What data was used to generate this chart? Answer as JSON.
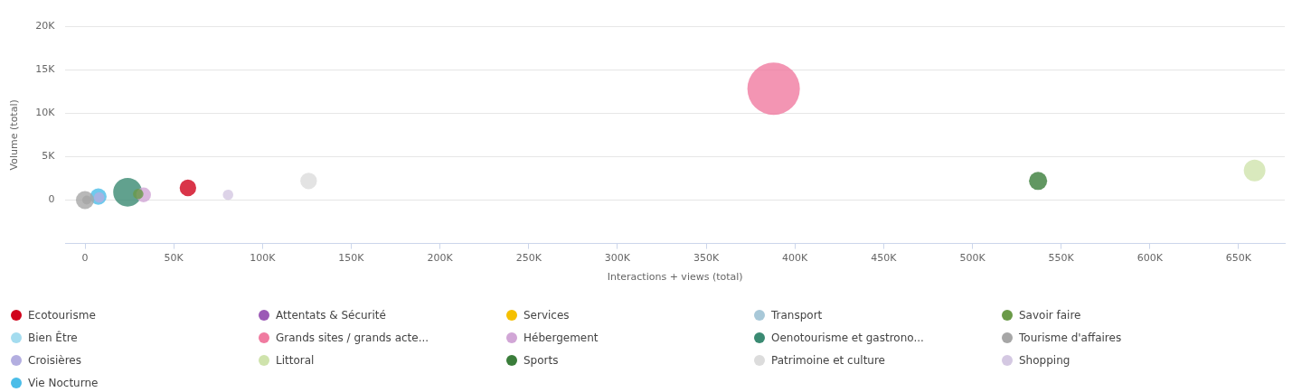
{
  "chart_data": {
    "type": "bubble",
    "xlabel": "Interactions + views (total)",
    "ylabel": "Volume (total)",
    "xlim": [
      -11000,
      676000
    ],
    "xticks": [
      {
        "value": 0,
        "label": "0"
      },
      {
        "value": 50000,
        "label": "50K"
      },
      {
        "value": 100000,
        "label": "100K"
      },
      {
        "value": 150000,
        "label": "150K"
      },
      {
        "value": 200000,
        "label": "200K"
      },
      {
        "value": 250000,
        "label": "250K"
      },
      {
        "value": 300000,
        "label": "300K"
      },
      {
        "value": 350000,
        "label": "350K"
      },
      {
        "value": 400000,
        "label": "400K"
      },
      {
        "value": 450000,
        "label": "450K"
      },
      {
        "value": 500000,
        "label": "500K"
      },
      {
        "value": 550000,
        "label": "550K"
      },
      {
        "value": 600000,
        "label": "600K"
      },
      {
        "value": 650000,
        "label": "650K"
      }
    ],
    "ylim": [
      -5000,
      20000
    ],
    "yticks": [
      {
        "value": 0,
        "label": "0"
      },
      {
        "value": 5000,
        "label": "5K"
      },
      {
        "value": 10000,
        "label": "10K"
      },
      {
        "value": 15000,
        "label": "15K"
      },
      {
        "value": 20000,
        "label": "20K"
      }
    ],
    "grid": "y",
    "legend": "bottom",
    "marker": "circle",
    "series": [
      {
        "name": "Ecotourisme",
        "color": "#d0021b",
        "x": [
          58000
        ],
        "values": [
          1400
        ],
        "sizes": [
          0.1
        ]
      },
      {
        "name": "Attentats & Sécurité",
        "color": "#9b59b6"
      },
      {
        "name": "Services",
        "color": "#f5c000"
      },
      {
        "name": "Transport",
        "color": "#a8c8d8"
      },
      {
        "name": "Savoir faire",
        "color": "#6a9a48",
        "x": [
          30000
        ],
        "values": [
          700
        ],
        "sizes": [
          0.04
        ]
      },
      {
        "name": "Bien Être",
        "color": "#a4dcef"
      },
      {
        "name": "Grands sites / grands acte...",
        "color": "#f07ba0",
        "x": [
          388000
        ],
        "values": [
          12800
        ],
        "sizes": [
          1
        ]
      },
      {
        "name": "Hébergement",
        "color": "#d1a6d6",
        "x": [
          33000
        ],
        "values": [
          600
        ],
        "sizes": [
          0.08
        ]
      },
      {
        "name": "Oenotourisme et gastrono...",
        "color": "#3a8a72",
        "x": [
          24000
        ],
        "values": [
          900
        ],
        "sizes": [
          0.3
        ]
      },
      {
        "name": "Tourisme d'affaires",
        "color": "#a6a6a6",
        "x": [
          0
        ],
        "values": [
          0
        ],
        "sizes": [
          0.12
        ]
      },
      {
        "name": "Croisières",
        "color": "#b3aee0",
        "x": [
          8000
        ],
        "values": [
          300
        ],
        "sizes": [
          0.04
        ]
      },
      {
        "name": "Littoral",
        "color": "#cfe3ac",
        "x": [
          659000
        ],
        "values": [
          3400
        ],
        "sizes": [
          0.17
        ]
      },
      {
        "name": "Sports",
        "color": "#3a7d3a",
        "x": [
          537000
        ],
        "values": [
          2200
        ],
        "sizes": [
          0.12
        ]
      },
      {
        "color": "#a0a0a0",
        "x": [
          1000
        ],
        "values": [
          0
        ],
        "sizes": [
          0.03
        ]
      },
      {
        "name": "Patrimoine et culture",
        "color": "#dcdcdc",
        "x": [
          126000
        ],
        "values": [
          2200
        ],
        "sizes": [
          0.1
        ]
      },
      {
        "name": "Shopping",
        "color": "#d4c8e2",
        "x": [
          80600
        ],
        "values": [
          600
        ],
        "sizes": [
          0.04
        ]
      },
      {
        "name": "Vie Nocturne",
        "color": "#4bbde8",
        "x": [
          7500
        ],
        "values": [
          400
        ],
        "sizes": [
          0.1
        ]
      }
    ]
  }
}
